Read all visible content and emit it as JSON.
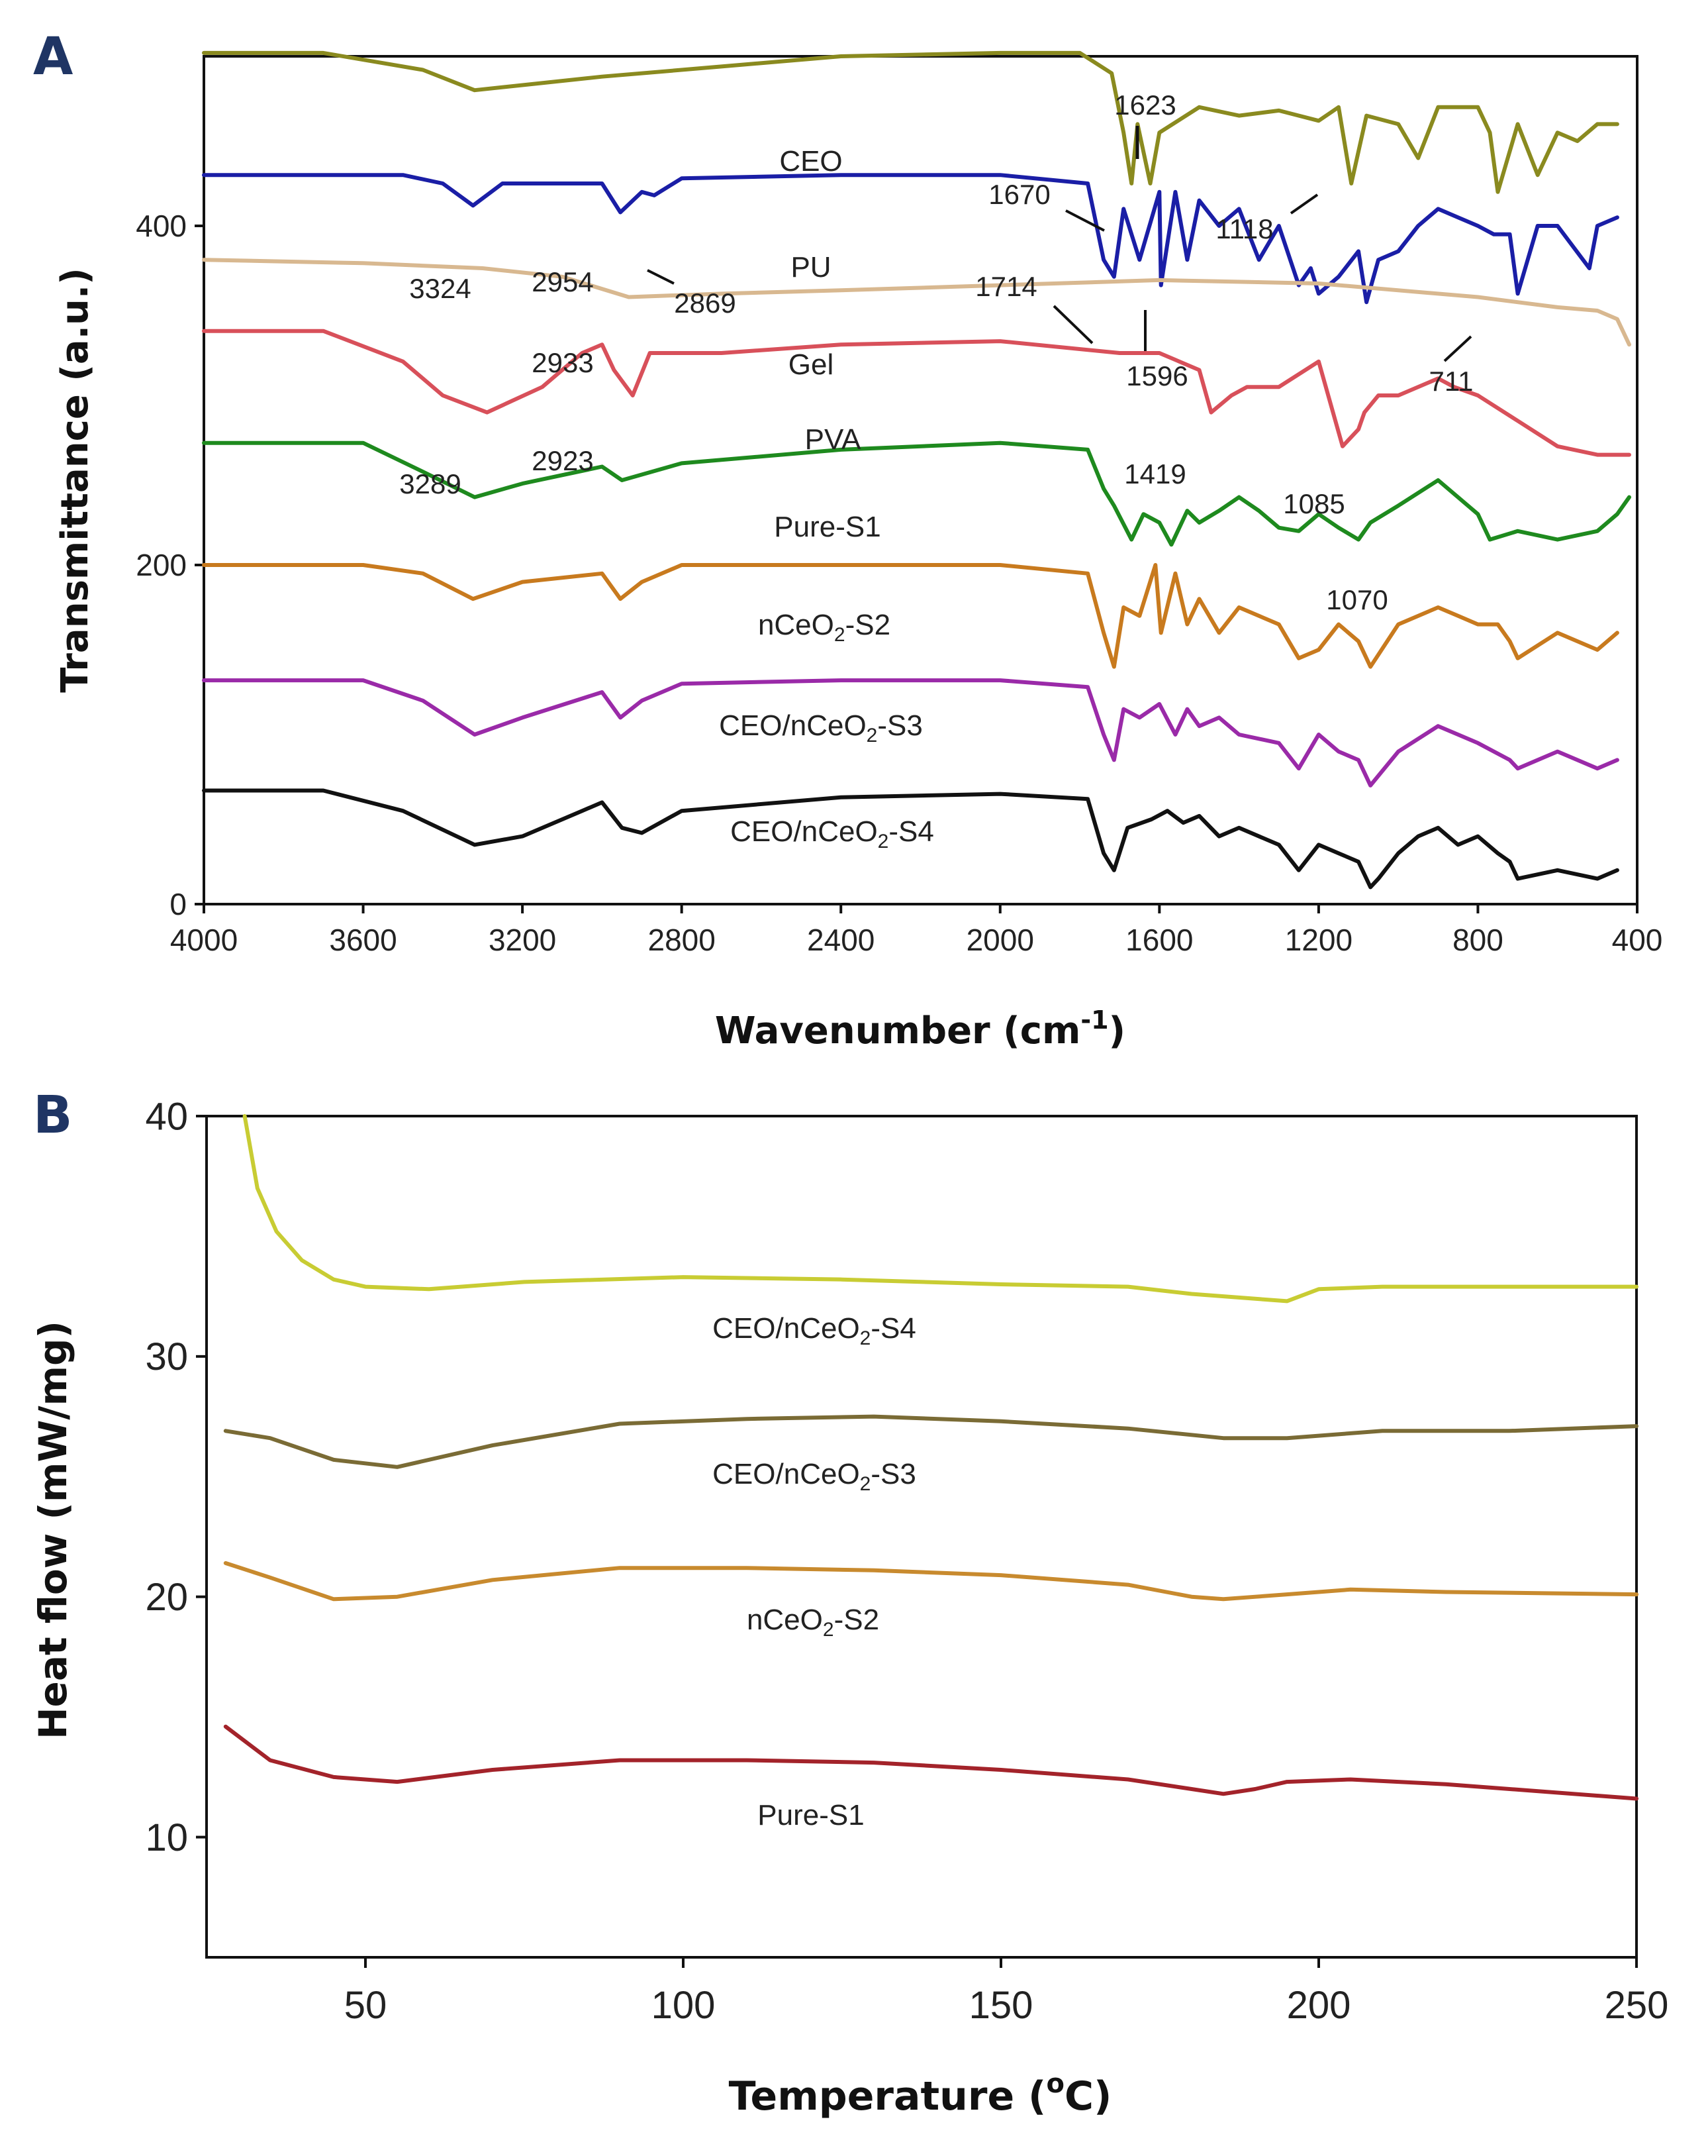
{
  "chart_data": [
    {
      "panel": "A",
      "type": "line",
      "title": "",
      "xlabel": "Wavenumber (cm",
      "xlabel_sup": "-1",
      "xlabel_close": ")",
      "ylabel": "Transmittance (a.u.)",
      "xlim": [
        4000,
        400
      ],
      "ylim": [
        0,
        500
      ],
      "xticks": [
        4000,
        3600,
        3200,
        2800,
        2400,
        2000,
        1600,
        1200,
        800,
        400
      ],
      "yticks": [
        0,
        200,
        400
      ],
      "series": [
        {
          "name": "CEO",
          "label": "CEO",
          "color": "#8a8a1f",
          "x": [
            4000,
            3700,
            3450,
            3320,
            3000,
            2700,
            2400,
            2000,
            1800,
            1720,
            1690,
            1670,
            1655,
            1623,
            1600,
            1500,
            1400,
            1300,
            1200,
            1150,
            1118,
            1080,
            1000,
            950,
            900,
            850,
            800,
            770,
            750,
            700,
            650,
            600,
            550,
            500,
            450
          ],
          "y": [
            502,
            502,
            492,
            480,
            488,
            494,
            500,
            502,
            502,
            490,
            455,
            425,
            460,
            425,
            455,
            470,
            465,
            468,
            462,
            470,
            425,
            465,
            460,
            440,
            470,
            470,
            470,
            455,
            420,
            460,
            430,
            455,
            450,
            460,
            460
          ]
        },
        {
          "name": "PU",
          "label": "PU",
          "color": "#1a1ea6",
          "x": [
            4000,
            3500,
            3400,
            3324,
            3250,
            3000,
            2954,
            2900,
            2869,
            2800,
            2400,
            2000,
            1780,
            1740,
            1714,
            1690,
            1650,
            1600,
            1596,
            1560,
            1530,
            1500,
            1450,
            1400,
            1350,
            1300,
            1250,
            1220,
            1200,
            1150,
            1100,
            1080,
            1050,
            1000,
            950,
            900,
            850,
            800,
            760,
            720,
            700,
            650,
            600,
            520,
            500,
            450
          ],
          "y": [
            430,
            430,
            425,
            412,
            425,
            425,
            408,
            420,
            418,
            428,
            430,
            430,
            425,
            380,
            370,
            410,
            380,
            420,
            365,
            420,
            380,
            415,
            400,
            410,
            380,
            400,
            365,
            375,
            360,
            370,
            385,
            355,
            380,
            385,
            400,
            410,
            405,
            400,
            395,
            395,
            360,
            400,
            400,
            375,
            400,
            405
          ]
        },
        {
          "name": "Gel",
          "label": "Gel",
          "color": "#d8b890",
          "x": [
            4000,
            3600,
            3300,
            3100,
            2933,
            2700,
            2400,
            2000,
            1600,
            1200,
            800,
            600,
            500,
            450,
            420
          ],
          "y": [
            380,
            378,
            375,
            370,
            358,
            360,
            362,
            365,
            368,
            366,
            358,
            352,
            350,
            345,
            330
          ]
        },
        {
          "name": "PVA",
          "label": "PVA",
          "color": "#d8505a",
          "x": [
            4000,
            3700,
            3500,
            3400,
            3289,
            3150,
            3050,
            3000,
            2970,
            2923,
            2880,
            2700,
            2400,
            2000,
            1700,
            1600,
            1500,
            1470,
            1419,
            1380,
            1300,
            1200,
            1140,
            1100,
            1085,
            1050,
            1000,
            900,
            860,
            800,
            700,
            600,
            500,
            420
          ],
          "y": [
            338,
            338,
            320,
            300,
            290,
            305,
            325,
            330,
            315,
            300,
            325,
            325,
            330,
            332,
            325,
            325,
            315,
            290,
            300,
            305,
            305,
            320,
            270,
            280,
            290,
            300,
            300,
            310,
            305,
            300,
            285,
            270,
            265,
            265
          ]
        },
        {
          "name": "Pure-S1",
          "label": "Pure-S1",
          "color": "#1e8a1e",
          "x": [
            4000,
            3600,
            3450,
            3320,
            3200,
            3000,
            2950,
            2800,
            2400,
            2000,
            1780,
            1740,
            1714,
            1670,
            1640,
            1600,
            1570,
            1530,
            1500,
            1450,
            1400,
            1350,
            1300,
            1250,
            1200,
            1150,
            1100,
            1070,
            1000,
            900,
            800,
            770,
            700,
            600,
            500,
            450,
            420
          ],
          "y": [
            272,
            272,
            255,
            240,
            248,
            258,
            250,
            260,
            268,
            272,
            268,
            245,
            235,
            215,
            230,
            225,
            212,
            232,
            225,
            232,
            240,
            232,
            222,
            220,
            230,
            222,
            215,
            225,
            235,
            250,
            230,
            215,
            220,
            215,
            220,
            230,
            240
          ]
        },
        {
          "name": "nCeO2-S2",
          "label": "nCeO2-S2",
          "color": "#c87a1e",
          "x": [
            4000,
            3600,
            3450,
            3324,
            3200,
            3000,
            2954,
            2900,
            2800,
            2400,
            2000,
            1780,
            1740,
            1714,
            1690,
            1650,
            1610,
            1596,
            1560,
            1530,
            1500,
            1450,
            1400,
            1300,
            1250,
            1200,
            1150,
            1100,
            1070,
            1000,
            900,
            850,
            800,
            750,
            720,
            700,
            600,
            500,
            450
          ],
          "y": [
            200,
            200,
            195,
            180,
            190,
            195,
            180,
            190,
            200,
            200,
            200,
            195,
            160,
            140,
            175,
            170,
            200,
            160,
            195,
            165,
            180,
            160,
            175,
            165,
            145,
            150,
            165,
            155,
            140,
            165,
            175,
            170,
            165,
            165,
            155,
            145,
            160,
            150,
            160
          ]
        },
        {
          "name": "CEO/nCeO2-S3",
          "label": "CEO/nCeO2-S3",
          "color": "#9a2aa8",
          "x": [
            4000,
            3600,
            3450,
            3320,
            3200,
            3000,
            2954,
            2900,
            2800,
            2400,
            2000,
            1780,
            1740,
            1714,
            1690,
            1650,
            1600,
            1560,
            1530,
            1500,
            1450,
            1400,
            1300,
            1250,
            1200,
            1150,
            1100,
            1070,
            1000,
            900,
            850,
            800,
            720,
            700,
            600,
            500,
            450
          ],
          "y": [
            132,
            132,
            120,
            100,
            110,
            125,
            110,
            120,
            130,
            132,
            132,
            128,
            100,
            85,
            115,
            110,
            118,
            100,
            115,
            105,
            110,
            100,
            95,
            80,
            100,
            90,
            85,
            70,
            90,
            105,
            100,
            95,
            85,
            80,
            90,
            80,
            85
          ]
        },
        {
          "name": "CEO/nCeO2-S4",
          "label": "CEO/nCeO2-S4",
          "color": "#111111",
          "x": [
            4000,
            3700,
            3500,
            3320,
            3200,
            3050,
            3000,
            2950,
            2900,
            2800,
            2400,
            2000,
            1780,
            1740,
            1714,
            1680,
            1620,
            1580,
            1540,
            1500,
            1450,
            1400,
            1300,
            1250,
            1200,
            1150,
            1100,
            1070,
            1050,
            1000,
            950,
            900,
            850,
            800,
            750,
            720,
            700,
            600,
            500,
            450
          ],
          "y": [
            67,
            67,
            55,
            35,
            40,
            55,
            60,
            45,
            42,
            55,
            63,
            65,
            62,
            30,
            20,
            45,
            50,
            55,
            48,
            52,
            40,
            45,
            35,
            20,
            35,
            30,
            25,
            10,
            15,
            30,
            40,
            45,
            35,
            40,
            30,
            25,
            15,
            20,
            15,
            20
          ]
        }
      ],
      "annotations": [
        "1623",
        "1670",
        "1118",
        "3324",
        "2954",
        "2869",
        "1714",
        "2933",
        "1596",
        "711",
        "3289",
        "2923",
        "1419",
        "1085",
        "1070"
      ]
    },
    {
      "panel": "B",
      "type": "line",
      "title": "",
      "xlabel": "Temperature (",
      "xlabel_sup": "o",
      "xlabel_close": "C)",
      "ylabel": "Heat flow (mW/mg)",
      "xlim": [
        25,
        250
      ],
      "ylim": [
        5,
        40
      ],
      "xticks": [
        50,
        100,
        150,
        200,
        250
      ],
      "yticks": [
        10,
        20,
        30,
        40
      ],
      "series": [
        {
          "name": "CEO/nCeO2-S4",
          "label": "CEO/nCeO2-S4",
          "color": "#c8cc33",
          "x": [
            31,
            33,
            36,
            40,
            45,
            50,
            60,
            75,
            100,
            125,
            150,
            170,
            180,
            190,
            195,
            200,
            210,
            225,
            250
          ],
          "y": [
            40,
            37,
            35.2,
            34,
            33.2,
            32.9,
            32.8,
            33.1,
            33.3,
            33.2,
            33.0,
            32.9,
            32.6,
            32.4,
            32.3,
            32.8,
            32.9,
            32.9,
            32.9
          ]
        },
        {
          "name": "CEO/nCeO2-S3",
          "label": "CEO/nCeO2-S3",
          "color": "#7a6b35",
          "x": [
            28,
            35,
            45,
            55,
            70,
            90,
            110,
            130,
            150,
            170,
            185,
            195,
            210,
            230,
            250
          ],
          "y": [
            26.9,
            26.6,
            25.7,
            25.4,
            26.3,
            27.2,
            27.4,
            27.5,
            27.3,
            27.0,
            26.6,
            26.6,
            26.9,
            26.9,
            27.1
          ]
        },
        {
          "name": "nCeO2-S2",
          "label": "nCeO2-S2",
          "color": "#c88a2e",
          "x": [
            28,
            35,
            45,
            55,
            70,
            90,
            110,
            130,
            150,
            170,
            180,
            185,
            195,
            205,
            220,
            250
          ],
          "y": [
            21.4,
            20.8,
            19.9,
            20.0,
            20.7,
            21.2,
            21.2,
            21.1,
            20.9,
            20.5,
            20.0,
            19.9,
            20.1,
            20.3,
            20.2,
            20.1
          ]
        },
        {
          "name": "Pure-S1",
          "label": "Pure-S1",
          "color": "#a3232a",
          "x": [
            28,
            35,
            45,
            55,
            70,
            90,
            110,
            130,
            150,
            170,
            180,
            185,
            190,
            195,
            205,
            220,
            250
          ],
          "y": [
            14.6,
            13.2,
            12.5,
            12.3,
            12.8,
            13.2,
            13.2,
            13.1,
            12.8,
            12.4,
            12.0,
            11.8,
            12.0,
            12.3,
            12.4,
            12.2,
            11.6
          ]
        }
      ]
    }
  ]
}
